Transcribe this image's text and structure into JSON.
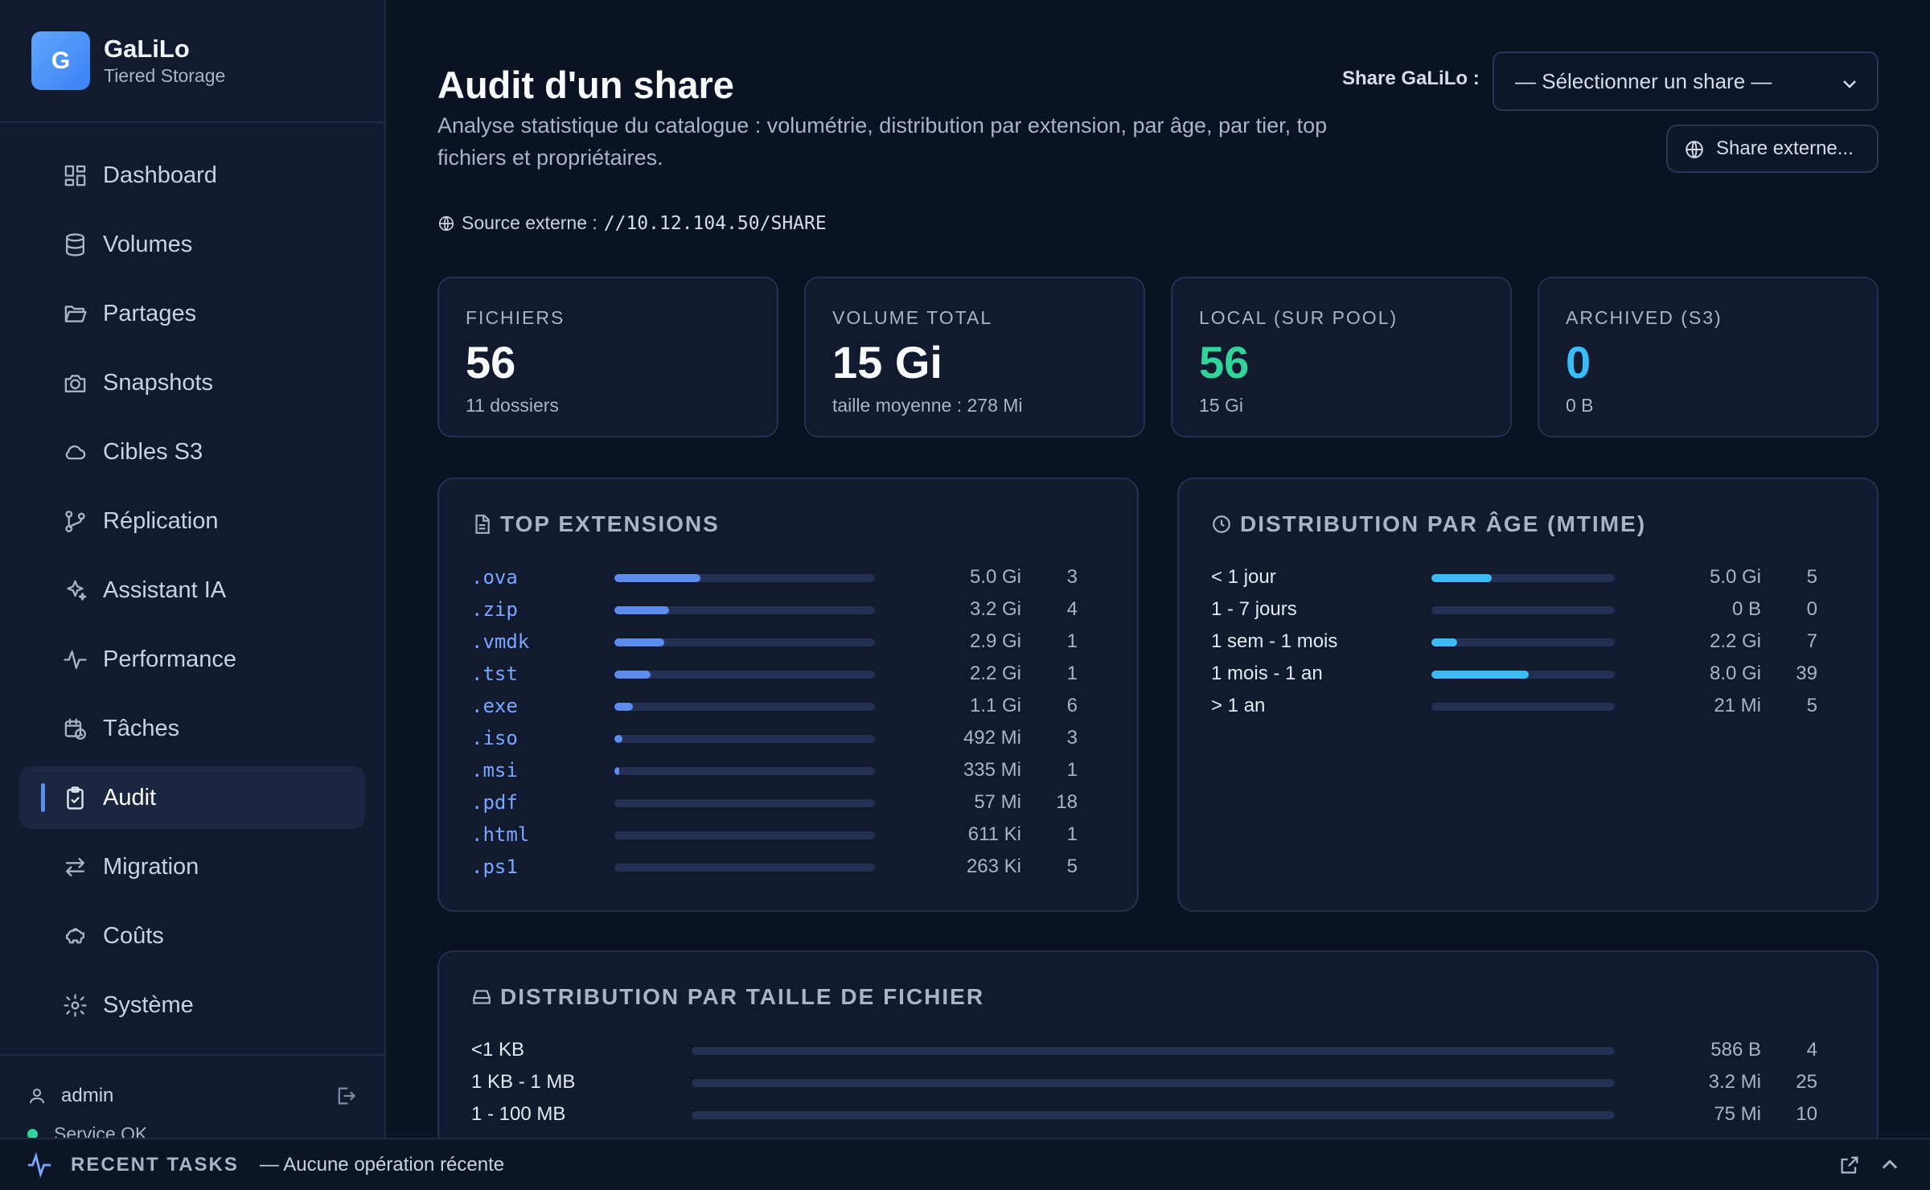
{
  "brand": {
    "initial": "G",
    "name": "GaLiLo",
    "subtitle": "Tiered Storage"
  },
  "nav": [
    {
      "label": "Dashboard",
      "icon": "dashboard-icon"
    },
    {
      "label": "Volumes",
      "icon": "database-icon"
    },
    {
      "label": "Partages",
      "icon": "folder-open-icon"
    },
    {
      "label": "Snapshots",
      "icon": "camera-icon"
    },
    {
      "label": "Cibles S3",
      "icon": "cloud-icon"
    },
    {
      "label": "Réplication",
      "icon": "git-branch-icon"
    },
    {
      "label": "Assistant IA",
      "icon": "sparkles-icon"
    },
    {
      "label": "Performance",
      "icon": "activity-icon"
    },
    {
      "label": "Tâches",
      "icon": "calendar-clock-icon"
    },
    {
      "label": "Audit",
      "icon": "clipboard-check-icon",
      "active": true
    },
    {
      "label": "Migration",
      "icon": "arrows-left-right-icon"
    },
    {
      "label": "Coûts",
      "icon": "piggy-bank-icon"
    },
    {
      "label": "Système",
      "icon": "gear-icon"
    }
  ],
  "footer": {
    "user": "admin",
    "status": "Service OK"
  },
  "header": {
    "title": "Audit d'un share",
    "subtitle": "Analyse statistique du catalogue : volumétrie, distribution par extension, par âge, par tier, top fichiers et propriétaires.",
    "share_label": "Share GaLiLo :",
    "share_select_value": "— Sélectionner un share —",
    "external_button": "Share externe...",
    "source_label": "Source externe :",
    "source_path": "//10.12.104.50/SHARE"
  },
  "stats": [
    {
      "label": "FICHIERS",
      "value": "56",
      "sub": "11 dossiers",
      "color": "#f8fafc"
    },
    {
      "label": "VOLUME TOTAL",
      "value": "15 Gi",
      "sub": "taille moyenne : 278 Mi",
      "color": "#f8fafc"
    },
    {
      "label": "LOCAL (SUR POOL)",
      "value": "56",
      "sub": "15 Gi",
      "color": "#34d399"
    },
    {
      "label": "ARCHIVED (S3)",
      "value": "0",
      "sub": "0 B",
      "color": "#38bdf8"
    }
  ],
  "extensions": {
    "title": "TOP EXTENSIONS",
    "bar_color": "#5b8def",
    "rows": [
      {
        "name": ".ova",
        "size": "5.0 Gi",
        "count": "3",
        "fraction": 0.33
      },
      {
        "name": ".zip",
        "size": "3.2 Gi",
        "count": "4",
        "fraction": 0.21
      },
      {
        "name": ".vmdk",
        "size": "2.9 Gi",
        "count": "1",
        "fraction": 0.19
      },
      {
        "name": ".tst",
        "size": "2.2 Gi",
        "count": "1",
        "fraction": 0.14
      },
      {
        "name": ".exe",
        "size": "1.1 Gi",
        "count": "6",
        "fraction": 0.07
      },
      {
        "name": ".iso",
        "size": "492 Mi",
        "count": "3",
        "fraction": 0.03
      },
      {
        "name": ".msi",
        "size": "335 Mi",
        "count": "1",
        "fraction": 0.02
      },
      {
        "name": ".pdf",
        "size": "57 Mi",
        "count": "18",
        "fraction": 0.0
      },
      {
        "name": ".html",
        "size": "611 Ki",
        "count": "1",
        "fraction": 0.0
      },
      {
        "name": ".ps1",
        "size": "263 Ki",
        "count": "5",
        "fraction": 0.0
      }
    ]
  },
  "age": {
    "title": "DISTRIBUTION PAR ÂGE (MTIME)",
    "bar_color": "#38bdf8",
    "rows": [
      {
        "name": "< 1 jour",
        "size": "5.0 Gi",
        "count": "5",
        "fraction": 0.33
      },
      {
        "name": "1 - 7 jours",
        "size": "0 B",
        "count": "0",
        "fraction": 0.0
      },
      {
        "name": "1 sem - 1 mois",
        "size": "2.2 Gi",
        "count": "7",
        "fraction": 0.14
      },
      {
        "name": "1 mois - 1 an",
        "size": "8.0 Gi",
        "count": "39",
        "fraction": 0.53
      },
      {
        "name": "> 1 an",
        "size": "21 Mi",
        "count": "5",
        "fraction": 0.0
      }
    ]
  },
  "sizes": {
    "title": "DISTRIBUTION PAR TAILLE DE FICHIER",
    "bar_color": "#5b8def",
    "rows": [
      {
        "name": "<1 KB",
        "size": "586 B",
        "count": "4",
        "fraction": 0.0
      },
      {
        "name": "1 KB - 1 MB",
        "size": "3.2 Mi",
        "count": "25",
        "fraction": 0.0
      },
      {
        "name": "1 - 100 MB",
        "size": "75 Mi",
        "count": "10",
        "fraction": 0.0
      }
    ]
  },
  "bottom": {
    "label": "RECENT TASKS",
    "message": "— Aucune opération récente"
  }
}
